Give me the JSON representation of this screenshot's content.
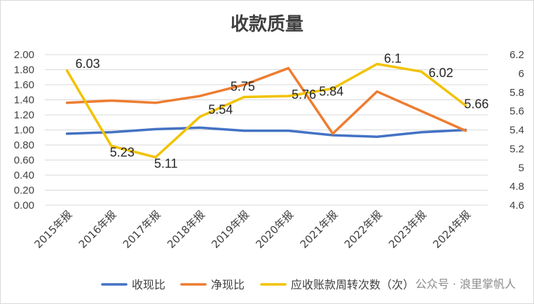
{
  "chart_data": {
    "type": "line",
    "title": "收款质量",
    "categories": [
      "2015年报",
      "2016年报",
      "2017年报",
      "2018年报",
      "2019年报",
      "2020年报",
      "2021年报",
      "2022年报",
      "2023年报",
      "2024年报"
    ],
    "left_axis": {
      "range": [
        0,
        2.0
      ],
      "ticks": [
        "0.00",
        "0.20",
        "0.40",
        "0.60",
        "0.80",
        "1.00",
        "1.20",
        "1.40",
        "1.60",
        "1.80",
        "2.00"
      ]
    },
    "right_axis": {
      "range": [
        4.6,
        6.2
      ],
      "ticks": [
        "4.6",
        "4.8",
        "5",
        "5.2",
        "5.4",
        "5.6",
        "5.8",
        "6",
        "6.2"
      ]
    },
    "series": [
      {
        "name": "收现比",
        "axis": "left",
        "color": "#4472C4",
        "values": [
          0.95,
          0.97,
          1.01,
          1.03,
          0.99,
          0.99,
          0.93,
          0.91,
          0.97,
          1.0
        ]
      },
      {
        "name": "净现比",
        "axis": "left",
        "color": "#ED7D31",
        "values": [
          1.36,
          1.39,
          1.36,
          1.45,
          1.6,
          1.82,
          0.95,
          1.51,
          1.25,
          0.99
        ]
      },
      {
        "name": "应收账款周转次数（次）",
        "axis": "right",
        "color": "#F2C200",
        "values": [
          6.03,
          5.23,
          5.11,
          5.54,
          5.75,
          5.76,
          5.84,
          6.1,
          6.02,
          5.66
        ],
        "labels": [
          "6.03",
          "5.23",
          "5.11",
          "5.54",
          "5.75",
          "5.76",
          "5.84",
          "6.1",
          "6.02",
          "5.66"
        ]
      }
    ],
    "legend_position": "bottom",
    "grid": true
  },
  "watermark": "公众号 · 浪里掌帆人"
}
